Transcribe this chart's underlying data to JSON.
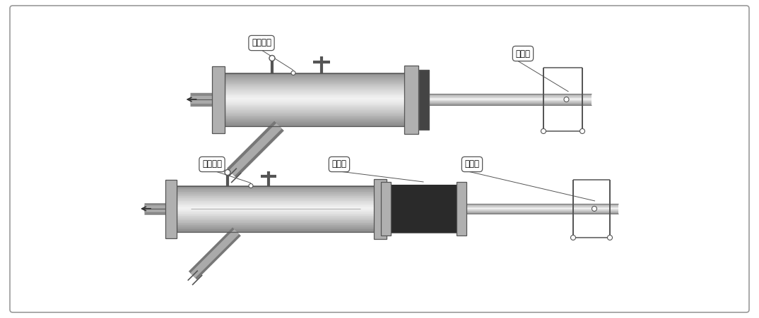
{
  "bg_color": "#ffffff",
  "label1_top": "막음장치",
  "label2_top": "배토관",
  "label1_bot": "막음장치",
  "label2_bot": "주름관",
  "label3_bot": "배토관",
  "figw": 10.74,
  "figh": 4.51,
  "dpi": 100
}
